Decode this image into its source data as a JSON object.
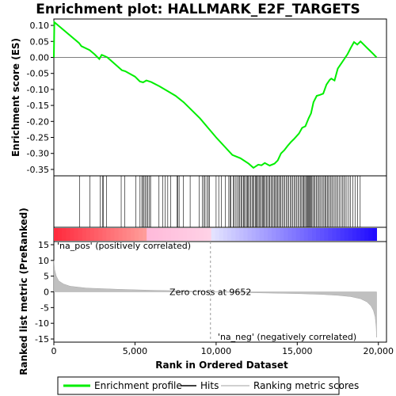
{
  "chart_data": {
    "type": "line",
    "title": "Enrichment plot: HALLMARK_E2F_TARGETS",
    "top_panel": {
      "ylabel": "Enrichment score (ES)",
      "ylim": [
        -0.37,
        0.12
      ],
      "yticks": [
        "0.10",
        "0.05",
        "0.00",
        "-0.05",
        "-0.10",
        "-0.15",
        "-0.20",
        "-0.25",
        "-0.30",
        "-0.35"
      ],
      "ytick_values": [
        0.1,
        0.05,
        0.0,
        -0.05,
        -0.1,
        -0.15,
        -0.2,
        -0.25,
        -0.3,
        -0.35
      ],
      "series": {
        "name": "Enrichment profile",
        "color": "#00ee00",
        "x": [
          0,
          30,
          1550,
          1700,
          2200,
          2500,
          2800,
          2950,
          3100,
          3300,
          4200,
          4400,
          5000,
          5300,
          5500,
          5700,
          6000,
          6500,
          7000,
          7500,
          8000,
          9000,
          10000,
          11000,
          11500,
          12000,
          12300,
          12600,
          12800,
          13000,
          13300,
          13600,
          13800,
          14000,
          14200,
          14400,
          14600,
          14800,
          15100,
          15300,
          15500,
          15700,
          15850,
          16000,
          16200,
          16400,
          16600,
          16800,
          17000,
          17100,
          17300,
          17500,
          17700,
          17900,
          18100,
          18300,
          18500,
          18700,
          18900,
          19100,
          19300,
          19500,
          19700,
          19890
        ],
        "y": [
          0.0,
          0.11,
          0.045,
          0.035,
          0.023,
          0.01,
          -0.005,
          0.008,
          0.005,
          0.0,
          -0.04,
          -0.043,
          -0.06,
          -0.075,
          -0.078,
          -0.072,
          -0.077,
          -0.09,
          -0.105,
          -0.12,
          -0.14,
          -0.19,
          -0.25,
          -0.305,
          -0.315,
          -0.332,
          -0.345,
          -0.335,
          -0.337,
          -0.33,
          -0.338,
          -0.332,
          -0.322,
          -0.3,
          -0.29,
          -0.277,
          -0.265,
          -0.255,
          -0.238,
          -0.22,
          -0.215,
          -0.19,
          -0.175,
          -0.14,
          -0.12,
          -0.117,
          -0.113,
          -0.085,
          -0.07,
          -0.066,
          -0.072,
          -0.035,
          -0.02,
          -0.005,
          0.01,
          0.03,
          0.048,
          0.04,
          0.05,
          0.04,
          0.03,
          0.02,
          0.01,
          0.0
        ]
      }
    },
    "hits_panel": {
      "name": "Hits",
      "hit_positions": [
        1580,
        2230,
        2850,
        2990,
        3050,
        3250,
        4150,
        4370,
        5050,
        5310,
        5420,
        5480,
        5560,
        5640,
        5720,
        5800,
        5900,
        5960,
        6480,
        6720,
        6850,
        7020,
        7200,
        7580,
        7640,
        7720,
        7990,
        8400,
        8950,
        9150,
        9250,
        9320,
        9430,
        9520,
        9580,
        10000,
        10160,
        10330,
        10570,
        10780,
        10870,
        10920,
        11050,
        11120,
        11220,
        11310,
        11390,
        11460,
        11530,
        11600,
        11680,
        11720,
        11790,
        11880,
        11940,
        11990,
        12060,
        12120,
        12210,
        12280,
        12340,
        12420,
        12480,
        12530,
        12590,
        12650,
        12720,
        12790,
        12850,
        12910,
        12970,
        13030,
        13100,
        13170,
        13240,
        13310,
        13380,
        13450,
        13520,
        13590,
        13660,
        13720,
        13790,
        13860,
        13930,
        14000,
        14080,
        14160,
        14240,
        14320,
        14400,
        14480,
        14560,
        14640,
        14720,
        14800,
        14880,
        14960,
        15040,
        15120,
        15200,
        15270,
        15340,
        15410,
        15470,
        15530,
        15590,
        15650,
        15700,
        15750,
        15800,
        15850,
        15900,
        15960,
        16030,
        16100,
        16170,
        16250,
        16320,
        16400,
        16480,
        16560,
        16640,
        16710,
        16780,
        16850,
        16920,
        17000,
        17080,
        17160,
        17240,
        17330,
        17420,
        17510,
        17600,
        17690,
        17780,
        17870,
        17960,
        18060,
        18170,
        18290,
        18420,
        18560,
        18720,
        18880
      ]
    },
    "bottom_panel": {
      "ylabel": "Ranked list metric (PreRanked)",
      "xlabel": "Rank in Ordered Dataset",
      "xlim": [
        0,
        20500
      ],
      "xticks": [
        "0",
        "5,000",
        "10,000",
        "15,000",
        "20,000"
      ],
      "xtick_values": [
        0,
        5000,
        10000,
        15000,
        20000
      ],
      "ylim": [
        -16,
        16
      ],
      "yticks": [
        "15",
        "10",
        "5",
        "0",
        "-5",
        "-10",
        "-15"
      ],
      "ytick_values": [
        15,
        10,
        5,
        0,
        -5,
        -10,
        -15
      ],
      "zero_cross": 9652,
      "zero_cross_label": "Zero cross at 9652",
      "pos_label": "'na_pos' (positively correlated)",
      "neg_label": "'na_neg' (negatively correlated)",
      "pos_label_color": "#ff0000",
      "neg_label_color": "#0000ff",
      "metric_x": [
        0,
        50,
        150,
        300,
        600,
        1000,
        2000,
        4000,
        6000,
        8000,
        9652,
        11000,
        13000,
        15000,
        16500,
        17500,
        18300,
        18900,
        19300,
        19550,
        19700,
        19800,
        19860,
        19890
      ],
      "metric_y": [
        10,
        7,
        5,
        3.5,
        2.5,
        1.8,
        1.2,
        0.8,
        0.5,
        0.3,
        0,
        -0.15,
        -0.35,
        -0.55,
        -0.8,
        -1.1,
        -1.5,
        -2.2,
        -3.2,
        -4.5,
        -6,
        -8,
        -11,
        -14.5
      ]
    },
    "legend": {
      "items": [
        {
          "label": "Enrichment profile",
          "color": "#00ee00"
        },
        {
          "label": "Hits",
          "color": "#000000"
        },
        {
          "label": "Ranking metric scores",
          "color": "#c0c0c0"
        }
      ]
    }
  }
}
